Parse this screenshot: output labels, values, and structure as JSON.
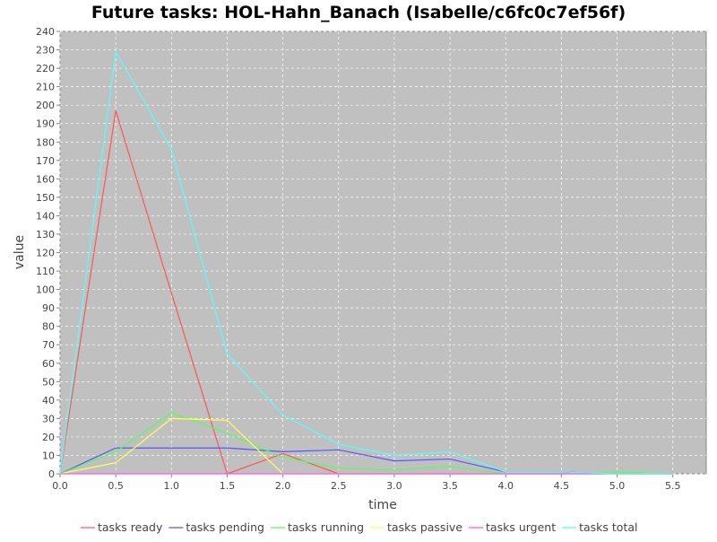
{
  "chart_data": {
    "type": "line",
    "title": "Future tasks: HOL-Hahn_Banach (Isabelle/c6fc0c7ef56f)",
    "xlabel": "time",
    "ylabel": "value",
    "xlim": [
      0,
      5.8
    ],
    "ylim": [
      0,
      240
    ],
    "xticks": [
      "0.0",
      "0.5",
      "1.0",
      "1.5",
      "2.0",
      "2.5",
      "3.0",
      "3.5",
      "4.0",
      "4.5",
      "5.0",
      "5.5"
    ],
    "yticks": [
      "0",
      "10",
      "20",
      "30",
      "40",
      "50",
      "60",
      "70",
      "80",
      "90",
      "100",
      "110",
      "120",
      "130",
      "140",
      "150",
      "160",
      "170",
      "180",
      "190",
      "200",
      "210",
      "220",
      "230",
      "240"
    ],
    "grid": true,
    "legend": "bottom",
    "plot_background": "#c0c0c0",
    "x": [
      0,
      0.5,
      1.0,
      1.5,
      2.0,
      2.5,
      3.0,
      3.5,
      4.0,
      4.5,
      5.0,
      5.5
    ],
    "series": [
      {
        "name": "tasks ready",
        "color": "#ff5555",
        "values": [
          0,
          197,
          98,
          0,
          11,
          0,
          0,
          0,
          0,
          0,
          0,
          0
        ]
      },
      {
        "name": "tasks pending",
        "color": "#5555ff",
        "values": [
          0,
          14,
          14,
          14,
          12,
          13,
          7,
          8,
          1,
          1,
          0,
          0
        ]
      },
      {
        "name": "tasks running",
        "color": "#55ff55",
        "values": [
          0,
          12,
          33,
          22,
          9,
          3,
          2,
          4,
          0,
          0,
          1,
          0
        ]
      },
      {
        "name": "tasks passive",
        "color": "#ffff55",
        "values": [
          0,
          6,
          30,
          29,
          0,
          0,
          0,
          0,
          0,
          0,
          0,
          0
        ]
      },
      {
        "name": "tasks urgent",
        "color": "#ff55ff",
        "values": [
          0,
          0,
          0,
          0,
          0,
          0,
          0,
          0,
          0,
          0,
          0,
          0
        ]
      },
      {
        "name": "tasks total",
        "color": "#55ffff",
        "values": [
          0,
          229,
          176,
          65,
          32,
          16,
          10,
          12,
          1,
          1,
          0,
          0
        ]
      }
    ]
  }
}
